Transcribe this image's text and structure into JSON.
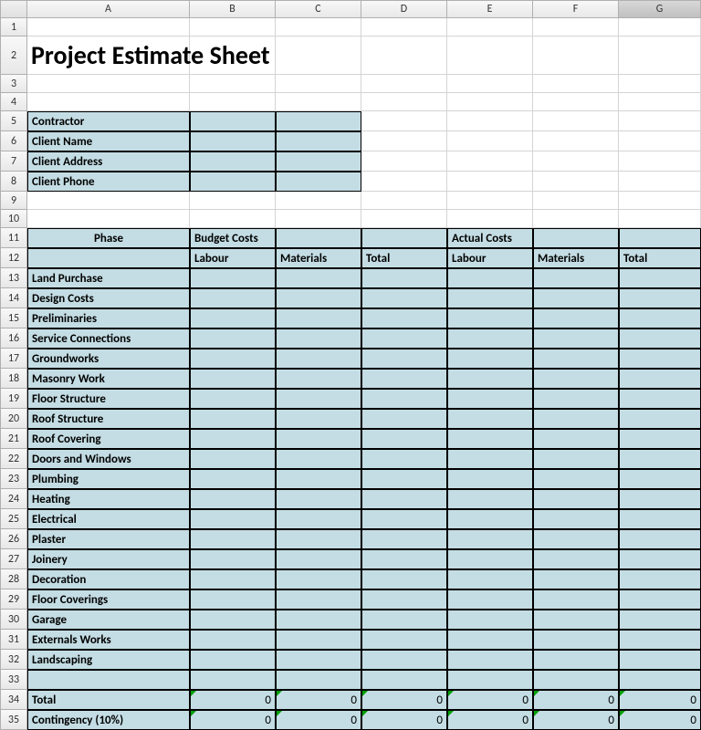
{
  "columns": [
    "A",
    "B",
    "C",
    "D",
    "E",
    "F",
    "G"
  ],
  "title": "Project Estimate Sheet",
  "info_fields": [
    {
      "label": "Contractor",
      "value": ""
    },
    {
      "label": "Client Name",
      "value": ""
    },
    {
      "label": "Client Address",
      "value": ""
    },
    {
      "label": "Client Phone",
      "value": ""
    }
  ],
  "headers": {
    "phase": "Phase",
    "budget": "Budget Costs",
    "actual": "Actual Costs",
    "labour": "Labour",
    "materials": "Materials",
    "total": "Total"
  },
  "phases": [
    "Land Purchase",
    "Design Costs",
    "Preliminaries",
    "Service Connections",
    "Groundworks",
    "Masonry Work",
    "Floor Structure",
    "Roof Structure",
    "Roof Covering",
    "Doors and Windows",
    "Plumbing",
    "Heating",
    "Electrical",
    "Plaster",
    "Joinery",
    "Decoration",
    "Floor Coverings",
    "Garage",
    "Externals Works",
    "Landscaping"
  ],
  "summary": {
    "total_label": "Total",
    "contingency_label": "Contingency (10%)",
    "total_values": [
      "0",
      "0",
      "0",
      "0",
      "0",
      "0"
    ],
    "contingency_values": [
      "0",
      "0",
      "0",
      "0",
      "0",
      "0"
    ]
  },
  "colors": {
    "blue_fill": "#c4dde4",
    "grid": "#d4d4d4",
    "border": "#000000",
    "header_bg": "#e8e8e8"
  },
  "selected_column": "G",
  "row_count": 35
}
